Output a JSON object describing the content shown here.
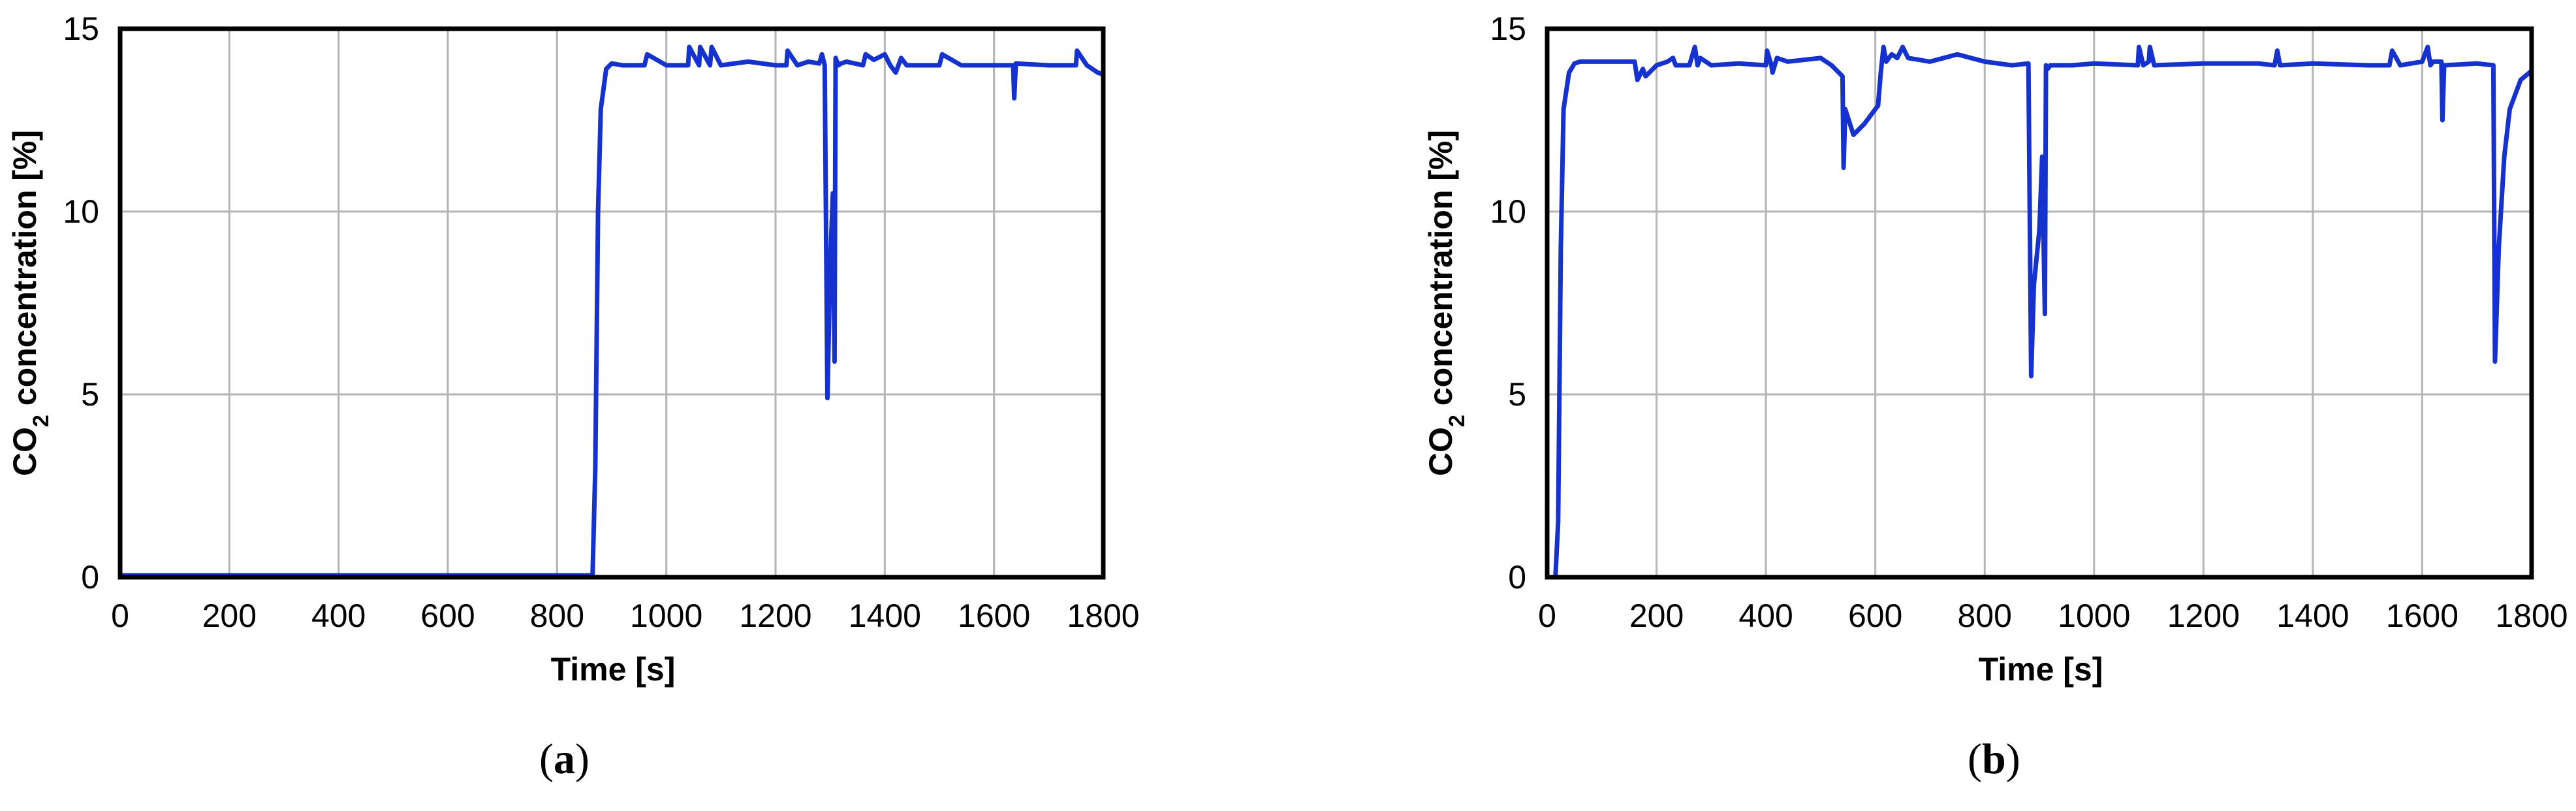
{
  "chart_data": [
    {
      "type": "line",
      "panel_label": "a",
      "xlabel": "Time [s]",
      "ylabel": "CO2 concentration [%]",
      "xlim": [
        0,
        1800
      ],
      "ylim": [
        0,
        15
      ],
      "xticks": [
        0,
        200,
        400,
        600,
        800,
        1000,
        1200,
        1400,
        1600,
        1800
      ],
      "yticks": [
        0,
        5,
        10,
        15
      ],
      "grid": true,
      "series": [
        {
          "color": "#1532cf",
          "x": [
            0,
            865,
            870,
            875,
            880,
            890,
            900,
            920,
            960,
            965,
            1000,
            1040,
            1042,
            1060,
            1062,
            1080,
            1083,
            1100,
            1150,
            1200,
            1220,
            1222,
            1240,
            1260,
            1280,
            1285,
            1290,
            1295,
            1300,
            1305,
            1308,
            1310,
            1315,
            1320,
            1330,
            1360,
            1365,
            1380,
            1400,
            1410,
            1420,
            1430,
            1440,
            1500,
            1505,
            1540,
            1600,
            1635,
            1637,
            1640,
            1700,
            1750,
            1752,
            1770,
            1780,
            1790,
            1800
          ],
          "y": [
            0.05,
            0.05,
            3,
            10,
            12.8,
            13.9,
            14.05,
            14.0,
            14.0,
            14.3,
            14.0,
            14.0,
            14.5,
            14.0,
            14.5,
            14.0,
            14.5,
            14.0,
            14.1,
            14.0,
            14.0,
            14.4,
            14.0,
            14.1,
            14.05,
            14.3,
            14.0,
            4.9,
            8.5,
            10.5,
            5.9,
            14.2,
            14.0,
            14.05,
            14.1,
            14.0,
            14.3,
            14.15,
            14.3,
            14.0,
            13.8,
            14.2,
            14.0,
            14.0,
            14.3,
            14.0,
            14.0,
            14.0,
            13.1,
            14.05,
            14.0,
            14.0,
            14.4,
            14.0,
            13.9,
            13.8,
            13.75
          ]
        }
      ]
    },
    {
      "type": "line",
      "panel_label": "b",
      "xlabel": "Time [s]",
      "ylabel": "CO2 concentration [%]",
      "xlim": [
        0,
        1800
      ],
      "ylim": [
        0,
        15
      ],
      "xticks": [
        0,
        200,
        400,
        600,
        800,
        1000,
        1200,
        1400,
        1600,
        1800
      ],
      "yticks": [
        0,
        5,
        10,
        15
      ],
      "grid": true,
      "series": [
        {
          "color": "#1532cf",
          "x": [
            0,
            15,
            20,
            25,
            30,
            40,
            50,
            60,
            100,
            160,
            165,
            175,
            180,
            200,
            220,
            230,
            235,
            260,
            270,
            275,
            280,
            300,
            350,
            400,
            402,
            410,
            412,
            420,
            440,
            500,
            520,
            540,
            542,
            545,
            560,
            580,
            600,
            605,
            610,
            615,
            620,
            625,
            630,
            640,
            650,
            660,
            700,
            750,
            800,
            850,
            880,
            885,
            890,
            900,
            905,
            910,
            912,
            915,
            920,
            960,
            1000,
            1080,
            1082,
            1090,
            1100,
            1102,
            1110,
            1200,
            1300,
            1330,
            1335,
            1340,
            1400,
            1500,
            1540,
            1545,
            1560,
            1600,
            1610,
            1615,
            1620,
            1635,
            1637,
            1640,
            1700,
            1730,
            1733,
            1740,
            1750,
            1760,
            1780,
            1800
          ],
          "y": [
            0,
            0,
            1.5,
            9,
            12.8,
            13.8,
            14.05,
            14.1,
            14.1,
            14.1,
            13.6,
            13.9,
            13.7,
            14.0,
            14.1,
            14.2,
            14.0,
            14.0,
            14.5,
            14.0,
            14.2,
            14.0,
            14.05,
            14.0,
            14.4,
            14.0,
            13.8,
            14.2,
            14.1,
            14.2,
            14.0,
            13.7,
            11.2,
            12.8,
            12.1,
            12.4,
            12.8,
            12.9,
            13.8,
            14.5,
            14.1,
            14.2,
            14.3,
            14.2,
            14.5,
            14.2,
            14.1,
            14.3,
            14.1,
            14.0,
            14.05,
            5.5,
            8.0,
            9.5,
            11.5,
            7.2,
            14.0,
            13.9,
            14.0,
            14.0,
            14.05,
            14.0,
            14.5,
            14.0,
            14.1,
            14.5,
            14.0,
            14.05,
            14.05,
            14.0,
            14.4,
            14.0,
            14.05,
            14.0,
            14.0,
            14.4,
            14.0,
            14.1,
            14.5,
            14.0,
            14.1,
            14.1,
            12.5,
            14.0,
            14.05,
            14.0,
            5.9,
            9.0,
            11.5,
            12.8,
            13.6,
            13.85
          ]
        }
      ]
    }
  ]
}
